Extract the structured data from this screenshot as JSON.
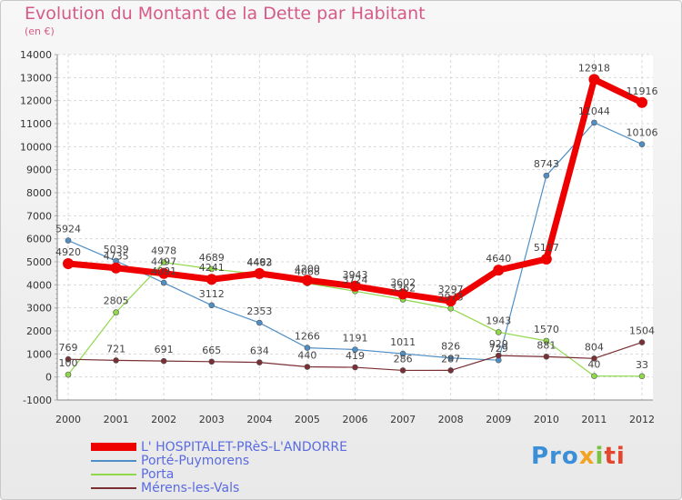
{
  "title": "Evolution du Montant de la Dette par Habitant",
  "subtitle": "(en €)",
  "logo": {
    "t1": "Pro",
    "t2": "x",
    "t3": "i",
    "t4": "ti"
  },
  "chart_data": {
    "type": "line",
    "categories": [
      "2000",
      "2001",
      "2002",
      "2003",
      "2004",
      "2005",
      "2006",
      "2007",
      "2008",
      "2009",
      "2010",
      "2011",
      "2012"
    ],
    "ylim": [
      -1000,
      14000
    ],
    "yticks": [
      -1000,
      0,
      1000,
      2000,
      3000,
      4000,
      5000,
      6000,
      7000,
      8000,
      9000,
      10000,
      11000,
      12000,
      13000,
      14000
    ],
    "grid": true,
    "legend_position": "bottom-left",
    "series": [
      {
        "name": "Porté-Puymorens",
        "color": "#4f8fc6",
        "width": 1.2,
        "values": [
          5924,
          5039,
          4091,
          3112,
          2353,
          1266,
          1191,
          1011,
          826,
          729,
          8743,
          11044,
          10106
        ],
        "labels": [
          "5924",
          "5039",
          "4091",
          "3112",
          "2353",
          "1266",
          "1191",
          "1011",
          "826",
          "729",
          "8743",
          "11044",
          "10106"
        ]
      },
      {
        "name": "Porta",
        "color": "#8fd84a",
        "width": 1.2,
        "values": [
          100,
          2805,
          4978,
          4689,
          4463,
          4068,
          3724,
          3362,
          2973,
          1943,
          1570,
          40,
          33
        ],
        "labels": [
          "100",
          "2805",
          "4978",
          "4689",
          "4463",
          "4068",
          "3724",
          "3362",
          "2973",
          "1943",
          "1570",
          "40",
          "33"
        ]
      },
      {
        "name": "Mérens-les-Vals",
        "color": "#7a2f34",
        "width": 1.2,
        "values": [
          769,
          721,
          691,
          665,
          634,
          440,
          419,
          286,
          287,
          929,
          881,
          804,
          1504
        ],
        "labels": [
          "769",
          "721",
          "691",
          "665",
          "634",
          "440",
          "419",
          "286",
          "287",
          "929",
          "881",
          "804",
          "1504"
        ]
      },
      {
        "name": "L' HOSPITALET-PRèS-L'ANDORRE",
        "color": "#ee0000",
        "width": 7,
        "values": [
          4920,
          4735,
          4497,
          4241,
          4492,
          4200,
          3943,
          3602,
          3297,
          4640,
          5117,
          12918,
          11916
        ],
        "labels": [
          "4920",
          "4735",
          "4497",
          "4241",
          "4492",
          "4200",
          "3943",
          "3602",
          "3297",
          "4640",
          "5117",
          "12918",
          "11916"
        ]
      }
    ]
  },
  "legend": [
    {
      "label": "L' HOSPITALET-PRèS-L'ANDORRE",
      "color": "#ee0000"
    },
    {
      "label": "Porté-Puymorens",
      "color": "#4f8fc6"
    },
    {
      "label": "Porta",
      "color": "#8fd84a"
    },
    {
      "label": "Mérens-les-Vals",
      "color": "#7a2f34"
    }
  ]
}
